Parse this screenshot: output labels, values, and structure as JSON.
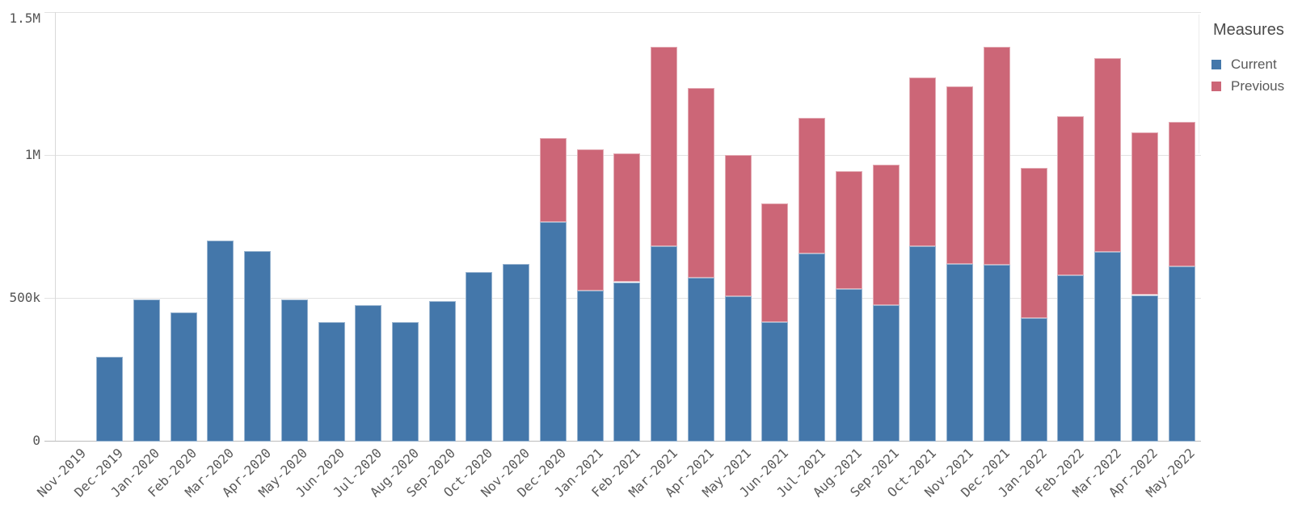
{
  "chart_data": {
    "type": "bar",
    "stacked": true,
    "legend_title": "Measures",
    "legend_position": "right",
    "grid": "horizontal",
    "x_tick_rotation": -45,
    "categories": [
      "Nov-2019",
      "Dec-2019",
      "Jan-2020",
      "Feb-2020",
      "Mar-2020",
      "Apr-2020",
      "May-2020",
      "Jun-2020",
      "Jul-2020",
      "Aug-2020",
      "Sep-2020",
      "Oct-2020",
      "Nov-2020",
      "Dec-2020",
      "Jan-2021",
      "Feb-2021",
      "Mar-2021",
      "Apr-2021",
      "May-2021",
      "Jun-2021",
      "Jul-2021",
      "Aug-2021",
      "Sep-2021",
      "Oct-2021",
      "Nov-2021",
      "Dec-2021",
      "Jan-2022",
      "Feb-2022",
      "Mar-2022",
      "Apr-2022",
      "May-2022"
    ],
    "series": [
      {
        "name": "Current",
        "color": "#4477aa",
        "values": [
          0,
          295000,
          495000,
          450000,
          700000,
          665000,
          495000,
          415000,
          475000,
          415000,
          490000,
          590000,
          620000,
          765000,
          525000,
          555000,
          680000,
          570000,
          505000,
          415000,
          655000,
          530000,
          475000,
          680000,
          620000,
          615000,
          430000,
          580000,
          660000,
          510000,
          610000
        ]
      },
      {
        "name": "Previous",
        "color": "#cc6677",
        "values": [
          0,
          0,
          0,
          0,
          0,
          0,
          0,
          0,
          0,
          0,
          0,
          0,
          0,
          295000,
          495000,
          450000,
          700000,
          665000,
          495000,
          415000,
          475000,
          415000,
          490000,
          590000,
          620000,
          765000,
          525000,
          555000,
          680000,
          570000,
          505000
        ]
      }
    ],
    "y_axis": {
      "range": [
        0,
        1500000
      ],
      "ticks": [
        {
          "label": "0",
          "value": 0
        },
        {
          "label": "500k",
          "value": 500000
        },
        {
          "label": "1M",
          "value": 1000000
        },
        {
          "label": "1.5M",
          "value": 1500000
        }
      ]
    }
  },
  "legend": {
    "title": "Measures",
    "items": [
      {
        "label": "Current",
        "color": "#4477aa"
      },
      {
        "label": "Previous",
        "color": "#cc6677"
      }
    ]
  },
  "colors": {
    "current": "#4477aa",
    "previous": "#cc6677",
    "axis_text": "#595959",
    "gridline": "#e2e2e2",
    "baseline": "#bcbcbc",
    "background": "#ffffff"
  }
}
